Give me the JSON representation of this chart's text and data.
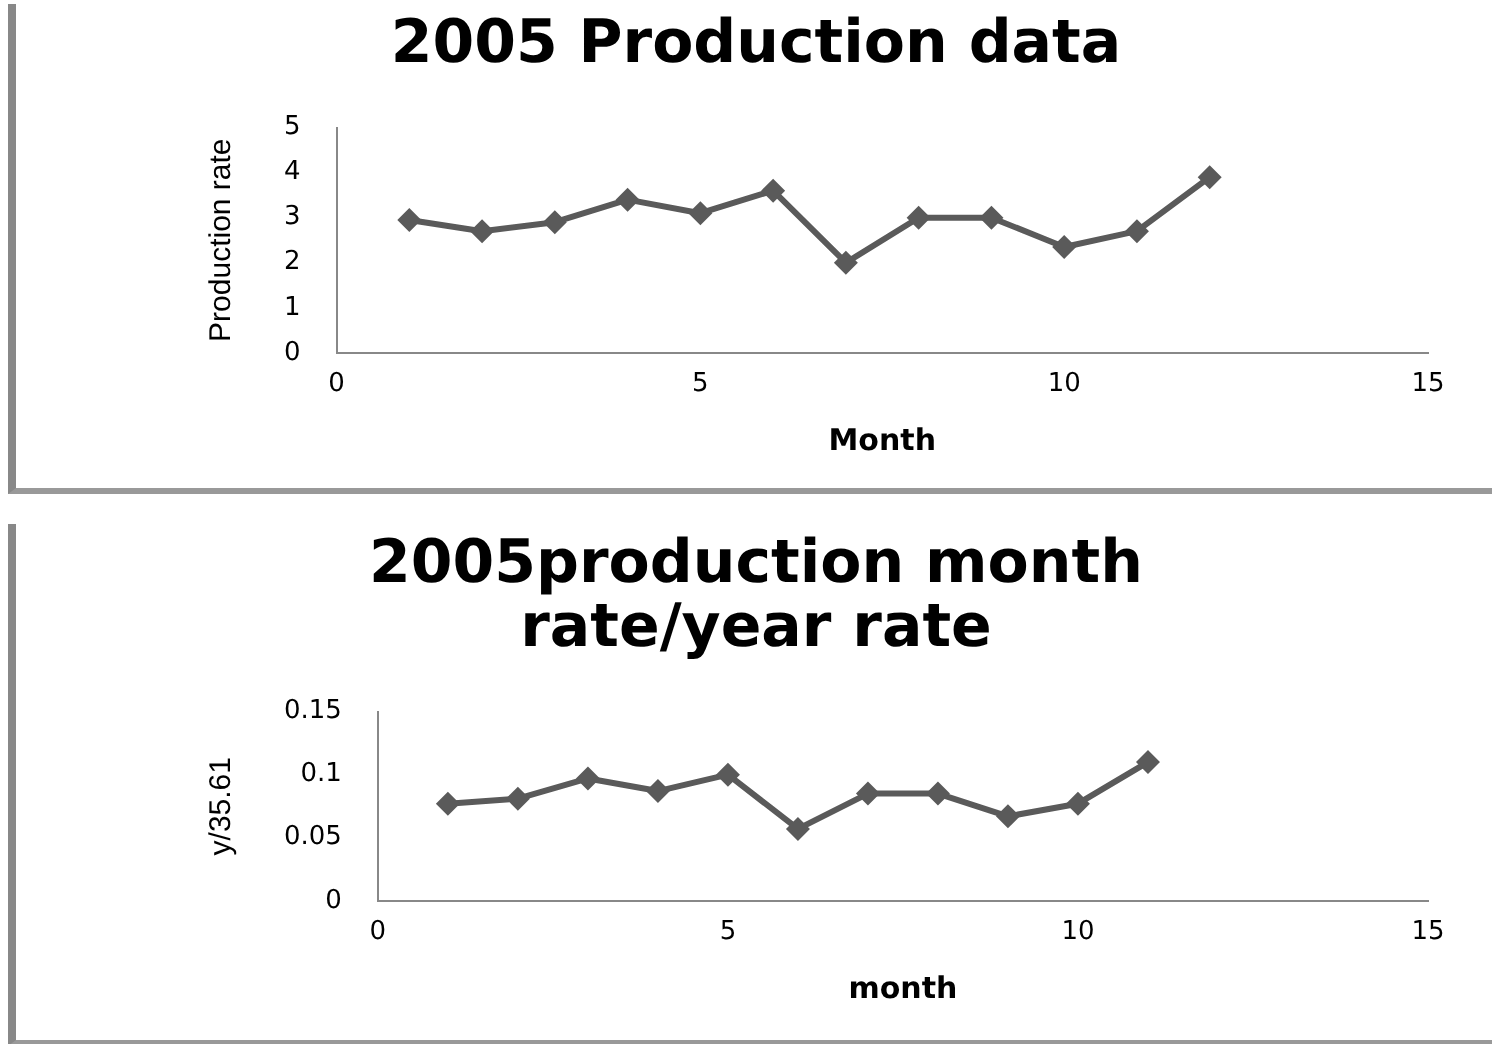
{
  "chart_data": [
    {
      "type": "line",
      "title": "2005 Production data",
      "xlabel": "Month",
      "ylabel": "Production rate",
      "x": [
        1,
        2,
        3,
        4,
        5,
        6,
        7,
        8,
        9,
        10,
        11,
        12
      ],
      "series": [
        {
          "color": "#5a5a5a",
          "values": [
            2.95,
            2.7,
            2.9,
            3.4,
            3.1,
            3.6,
            2.0,
            3.0,
            3.0,
            2.35,
            2.7,
            3.9
          ]
        }
      ],
      "xlim": [
        0,
        15
      ],
      "xticks": [
        0,
        5,
        10,
        15
      ],
      "ylim": [
        0,
        5
      ],
      "yticks": [
        0,
        1,
        2,
        3,
        4,
        5
      ],
      "grid": false,
      "legend": false,
      "marker": "diamond",
      "line_style": "solid"
    },
    {
      "type": "line",
      "title": "2005production month rate/year rate",
      "xlabel": "month",
      "ylabel": "y/35.61",
      "x": [
        1,
        2,
        3,
        4,
        5,
        6,
        7,
        8,
        9,
        10,
        11
      ],
      "series": [
        {
          "color": "#5a5a5a",
          "values": [
            0.077,
            0.081,
            0.097,
            0.087,
            0.1,
            0.057,
            0.085,
            0.085,
            0.067,
            0.077,
            0.11
          ]
        }
      ],
      "xlim": [
        0,
        15
      ],
      "xticks": [
        0,
        5,
        10,
        15
      ],
      "ylim": [
        0,
        0.15
      ],
      "yticks": [
        0,
        0.05,
        0.1,
        0.15
      ],
      "grid": false,
      "legend": false,
      "marker": "diamond",
      "line_style": "solid"
    }
  ]
}
